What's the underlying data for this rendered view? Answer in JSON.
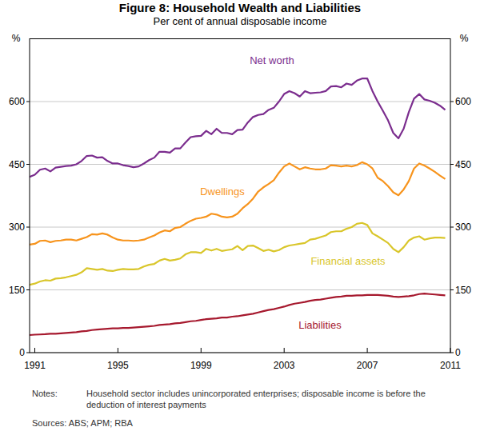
{
  "chart_data": {
    "type": "line",
    "title": "Figure 8: Household Wealth and Liabilities",
    "subtitle": "Per cent of annual disposable income",
    "ylabel": "%",
    "notes_label": "Notes:",
    "notes": "Household sector includes unincorporated enterprises; disposable income is before the deduction of interest payments",
    "sources": "Sources: ABS; APM; RBA",
    "grid": true,
    "xlim": [
      1990.75,
      2011
    ],
    "xticks": [
      1991,
      1995,
      1999,
      2003,
      2007,
      2011
    ],
    "ylim": [
      0,
      750
    ],
    "yticks": [
      0,
      150,
      300,
      450,
      600
    ],
    "x": [
      1990.75,
      1991,
      1991.25,
      1991.5,
      1991.75,
      1992,
      1992.25,
      1992.5,
      1992.75,
      1993,
      1993.25,
      1993.5,
      1993.75,
      1994,
      1994.25,
      1994.5,
      1994.75,
      1995,
      1995.25,
      1995.5,
      1995.75,
      1996,
      1996.25,
      1996.5,
      1996.75,
      1997,
      1997.25,
      1997.5,
      1997.75,
      1998,
      1998.25,
      1998.5,
      1998.75,
      1999,
      1999.25,
      1999.5,
      1999.75,
      2000,
      2000.25,
      2000.5,
      2000.75,
      2001,
      2001.25,
      2001.5,
      2001.75,
      2002,
      2002.25,
      2002.5,
      2002.75,
      2003,
      2003.25,
      2003.5,
      2003.75,
      2004,
      2004.25,
      2004.5,
      2004.75,
      2005,
      2005.25,
      2005.5,
      2005.75,
      2006,
      2006.25,
      2006.5,
      2006.75,
      2007,
      2007.25,
      2007.5,
      2007.75,
      2008,
      2008.25,
      2008.5,
      2008.75,
      2009,
      2009.25,
      2009.5,
      2009.75,
      2010,
      2010.25,
      2010.5,
      2010.75
    ],
    "series": [
      {
        "name": "Net worth",
        "color": "#7b2d8e",
        "values": [
          420,
          425,
          437,
          440,
          433,
          442,
          444,
          446,
          447,
          450,
          458,
          470,
          471,
          466,
          467,
          458,
          452,
          452,
          448,
          446,
          443,
          445,
          452,
          460,
          466,
          480,
          480,
          478,
          488,
          488,
          502,
          515,
          517,
          518,
          530,
          522,
          535,
          525,
          525,
          522,
          532,
          533,
          550,
          563,
          568,
          570,
          580,
          585,
          600,
          618,
          625,
          620,
          612,
          625,
          620,
          621,
          622,
          625,
          636,
          637,
          634,
          643,
          640,
          650,
          655,
          655,
          625,
          600,
          578,
          555,
          525,
          512,
          535,
          575,
          607,
          618,
          605,
          602,
          597,
          590,
          580
        ]
      },
      {
        "name": "Dwellings",
        "color": "#f7941d",
        "values": [
          258,
          260,
          267,
          268,
          264,
          267,
          268,
          270,
          270,
          268,
          272,
          276,
          283,
          282,
          285,
          282,
          275,
          270,
          268,
          268,
          267,
          268,
          270,
          275,
          280,
          287,
          292,
          290,
          298,
          300,
          308,
          315,
          320,
          322,
          325,
          332,
          330,
          325,
          323,
          325,
          332,
          345,
          355,
          368,
          385,
          395,
          403,
          412,
          430,
          445,
          452,
          445,
          438,
          443,
          440,
          438,
          438,
          440,
          448,
          447,
          445,
          447,
          445,
          448,
          455,
          450,
          440,
          418,
          410,
          398,
          383,
          376,
          390,
          410,
          440,
          452,
          447,
          440,
          432,
          423,
          415
        ]
      },
      {
        "name": "Financial assets",
        "color": "#d9c62b",
        "values": [
          162,
          165,
          170,
          173,
          172,
          177,
          178,
          180,
          183,
          186,
          192,
          202,
          200,
          198,
          200,
          196,
          195,
          198,
          200,
          199,
          199,
          200,
          206,
          210,
          212,
          220,
          224,
          220,
          222,
          225,
          235,
          240,
          240,
          238,
          248,
          244,
          248,
          243,
          245,
          247,
          255,
          245,
          255,
          256,
          250,
          243,
          246,
          242,
          245,
          252,
          256,
          258,
          260,
          262,
          270,
          272,
          276,
          280,
          288,
          290,
          290,
          296,
          300,
          308,
          310,
          305,
          285,
          278,
          270,
          262,
          248,
          240,
          252,
          268,
          275,
          278,
          270,
          273,
          275,
          275,
          274
        ]
      },
      {
        "name": "Liabilities",
        "color": "#a6192e",
        "values": [
          42,
          43,
          43.5,
          44,
          45,
          45,
          46,
          47,
          48,
          49,
          51,
          52,
          54,
          55,
          56,
          57,
          58,
          58,
          59,
          59,
          60,
          61,
          62,
          63,
          64,
          66,
          67,
          68,
          70,
          71,
          73,
          75,
          76,
          78,
          80,
          81,
          82,
          84,
          84,
          86,
          87,
          89,
          91,
          93,
          96,
          99,
          102,
          104,
          107,
          110,
          114,
          117,
          119,
          121,
          124,
          126,
          127,
          129,
          131,
          133,
          134,
          136,
          136,
          137,
          137,
          138,
          138,
          138,
          137,
          136,
          134,
          133,
          134,
          135,
          137,
          140,
          141,
          140,
          139,
          138,
          137
        ]
      }
    ]
  }
}
